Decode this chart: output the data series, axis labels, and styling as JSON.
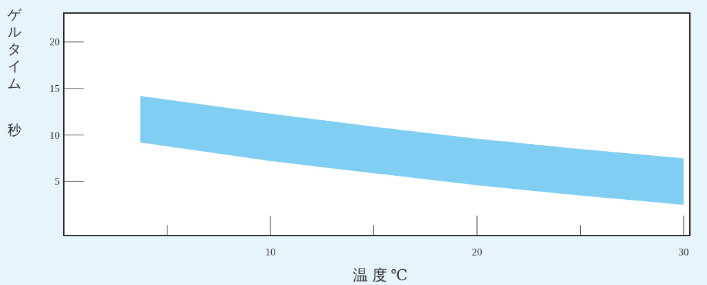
{
  "chart_data": {
    "type": "area",
    "xlabel": "温 度 ℃",
    "ylabel": "ゲルタイム",
    "annotations": [
      "秒"
    ],
    "xlim": [
      0,
      30.3
    ],
    "ylim": [
      -0.8,
      23.1
    ],
    "xticks": [
      {
        "value": 5,
        "label": null
      },
      10,
      {
        "value": 15,
        "label": null
      },
      20,
      {
        "value": 25,
        "label": null
      },
      30
    ],
    "yticks": [
      5,
      10,
      15,
      20
    ],
    "series": [
      {
        "color": "#80cef2",
        "x": [
          3.7,
          10,
          15,
          20,
          25,
          30
        ],
        "values": [
          null,
          null,
          null,
          null,
          null,
          null
        ],
        "upper": [
          14.2,
          12.3,
          10.9,
          9.6,
          8.5,
          7.5
        ],
        "lower": [
          9.2,
          7.2,
          5.9,
          4.6,
          3.5,
          2.5
        ]
      }
    ],
    "grid": false
  }
}
